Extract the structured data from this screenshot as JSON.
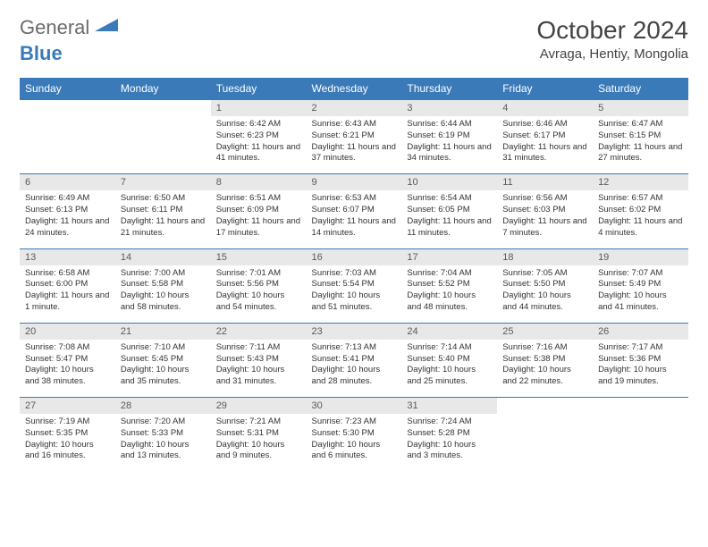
{
  "logo": {
    "text1": "General",
    "text2": "Blue"
  },
  "title": "October 2024",
  "location": "Avraga, Hentiy, Mongolia",
  "colors": {
    "header_bg": "#3a7ab8",
    "header_text": "#ffffff",
    "daynum_bg": "#e8e8e8",
    "daynum_text": "#5a5a5a",
    "page_bg": "#ffffff",
    "text": "#333333"
  },
  "weekdays": [
    "Sunday",
    "Monday",
    "Tuesday",
    "Wednesday",
    "Thursday",
    "Friday",
    "Saturday"
  ],
  "weeks": [
    {
      "nums": [
        "",
        "",
        "1",
        "2",
        "3",
        "4",
        "5"
      ],
      "cells": [
        "",
        "",
        "Sunrise: 6:42 AM\nSunset: 6:23 PM\nDaylight: 11 hours and 41 minutes.",
        "Sunrise: 6:43 AM\nSunset: 6:21 PM\nDaylight: 11 hours and 37 minutes.",
        "Sunrise: 6:44 AM\nSunset: 6:19 PM\nDaylight: 11 hours and 34 minutes.",
        "Sunrise: 6:46 AM\nSunset: 6:17 PM\nDaylight: 11 hours and 31 minutes.",
        "Sunrise: 6:47 AM\nSunset: 6:15 PM\nDaylight: 11 hours and 27 minutes."
      ]
    },
    {
      "nums": [
        "6",
        "7",
        "8",
        "9",
        "10",
        "11",
        "12"
      ],
      "cells": [
        "Sunrise: 6:49 AM\nSunset: 6:13 PM\nDaylight: 11 hours and 24 minutes.",
        "Sunrise: 6:50 AM\nSunset: 6:11 PM\nDaylight: 11 hours and 21 minutes.",
        "Sunrise: 6:51 AM\nSunset: 6:09 PM\nDaylight: 11 hours and 17 minutes.",
        "Sunrise: 6:53 AM\nSunset: 6:07 PM\nDaylight: 11 hours and 14 minutes.",
        "Sunrise: 6:54 AM\nSunset: 6:05 PM\nDaylight: 11 hours and 11 minutes.",
        "Sunrise: 6:56 AM\nSunset: 6:03 PM\nDaylight: 11 hours and 7 minutes.",
        "Sunrise: 6:57 AM\nSunset: 6:02 PM\nDaylight: 11 hours and 4 minutes."
      ]
    },
    {
      "nums": [
        "13",
        "14",
        "15",
        "16",
        "17",
        "18",
        "19"
      ],
      "cells": [
        "Sunrise: 6:58 AM\nSunset: 6:00 PM\nDaylight: 11 hours and 1 minute.",
        "Sunrise: 7:00 AM\nSunset: 5:58 PM\nDaylight: 10 hours and 58 minutes.",
        "Sunrise: 7:01 AM\nSunset: 5:56 PM\nDaylight: 10 hours and 54 minutes.",
        "Sunrise: 7:03 AM\nSunset: 5:54 PM\nDaylight: 10 hours and 51 minutes.",
        "Sunrise: 7:04 AM\nSunset: 5:52 PM\nDaylight: 10 hours and 48 minutes.",
        "Sunrise: 7:05 AM\nSunset: 5:50 PM\nDaylight: 10 hours and 44 minutes.",
        "Sunrise: 7:07 AM\nSunset: 5:49 PM\nDaylight: 10 hours and 41 minutes."
      ]
    },
    {
      "nums": [
        "20",
        "21",
        "22",
        "23",
        "24",
        "25",
        "26"
      ],
      "cells": [
        "Sunrise: 7:08 AM\nSunset: 5:47 PM\nDaylight: 10 hours and 38 minutes.",
        "Sunrise: 7:10 AM\nSunset: 5:45 PM\nDaylight: 10 hours and 35 minutes.",
        "Sunrise: 7:11 AM\nSunset: 5:43 PM\nDaylight: 10 hours and 31 minutes.",
        "Sunrise: 7:13 AM\nSunset: 5:41 PM\nDaylight: 10 hours and 28 minutes.",
        "Sunrise: 7:14 AM\nSunset: 5:40 PM\nDaylight: 10 hours and 25 minutes.",
        "Sunrise: 7:16 AM\nSunset: 5:38 PM\nDaylight: 10 hours and 22 minutes.",
        "Sunrise: 7:17 AM\nSunset: 5:36 PM\nDaylight: 10 hours and 19 minutes."
      ]
    },
    {
      "nums": [
        "27",
        "28",
        "29",
        "30",
        "31",
        "",
        ""
      ],
      "cells": [
        "Sunrise: 7:19 AM\nSunset: 5:35 PM\nDaylight: 10 hours and 16 minutes.",
        "Sunrise: 7:20 AM\nSunset: 5:33 PM\nDaylight: 10 hours and 13 minutes.",
        "Sunrise: 7:21 AM\nSunset: 5:31 PM\nDaylight: 10 hours and 9 minutes.",
        "Sunrise: 7:23 AM\nSunset: 5:30 PM\nDaylight: 10 hours and 6 minutes.",
        "Sunrise: 7:24 AM\nSunset: 5:28 PM\nDaylight: 10 hours and 3 minutes.",
        "",
        ""
      ]
    }
  ]
}
